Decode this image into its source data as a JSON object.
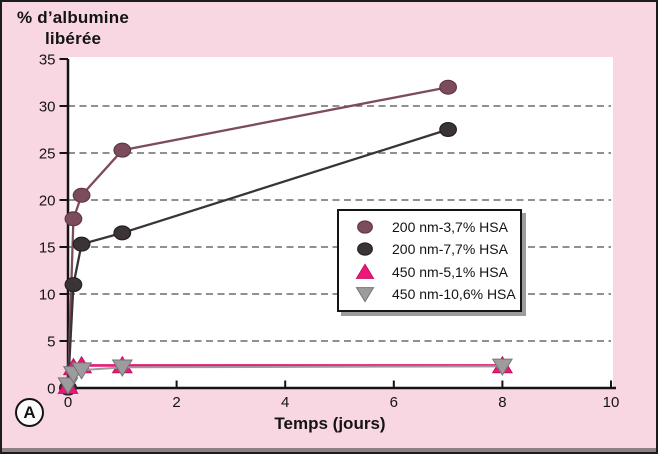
{
  "figure": {
    "badge": "A",
    "background_color": "#f8d7e3",
    "frame_color": "#1c1c1c",
    "bottom_strip_color": "#8d8087"
  },
  "chart_data": {
    "type": "line",
    "title": "% d’albumine libérée",
    "title_lines": [
      "% d’albumine",
      "libérée"
    ],
    "xlabel": "Temps (jours)",
    "ylabel": "% d’albumine libérée",
    "xlim": [
      0,
      10
    ],
    "ylim": [
      0,
      35
    ],
    "x_ticks": [
      0,
      2,
      4,
      6,
      8,
      10
    ],
    "y_ticks": [
      0,
      5,
      10,
      15,
      20,
      25,
      30,
      35
    ],
    "grid": "horizontal-dashed",
    "grid_color": "#4d4d4d",
    "axis_color": "#141414",
    "plot_background": "#ffffff",
    "legend_position": "middle-right",
    "series": [
      {
        "name": "200 nm-3,7% HSA",
        "marker": "circle",
        "color": "#7d4c5c",
        "edge": "#5d3848",
        "points": [
          [
            0,
            0
          ],
          [
            0.1,
            18.0
          ],
          [
            0.25,
            20.5
          ],
          [
            1,
            25.3
          ],
          [
            7,
            32.0
          ]
        ]
      },
      {
        "name": "200 nm-7,7% HSA",
        "marker": "circle",
        "color": "#3a3436",
        "edge": "#232021",
        "points": [
          [
            0,
            0
          ],
          [
            0.1,
            11.0
          ],
          [
            0.25,
            15.3
          ],
          [
            1,
            16.5
          ],
          [
            7,
            27.5
          ]
        ]
      },
      {
        "name": "450 nm-5,1% HSA",
        "marker": "triangle-up",
        "color": "#ec1878",
        "edge": "#c70f63",
        "points": [
          [
            0,
            0.2
          ],
          [
            0.1,
            2.2
          ],
          [
            0.25,
            2.4
          ],
          [
            1,
            2.4
          ],
          [
            8,
            2.4
          ]
        ]
      },
      {
        "name": "450 nm-10,6% HSA",
        "marker": "triangle-down",
        "color": "#9c9c9c",
        "edge": "#757575",
        "points": [
          [
            0,
            0.3
          ],
          [
            0.1,
            1.5
          ],
          [
            0.25,
            1.9
          ],
          [
            1,
            2.2
          ],
          [
            8,
            2.3
          ]
        ]
      }
    ]
  }
}
